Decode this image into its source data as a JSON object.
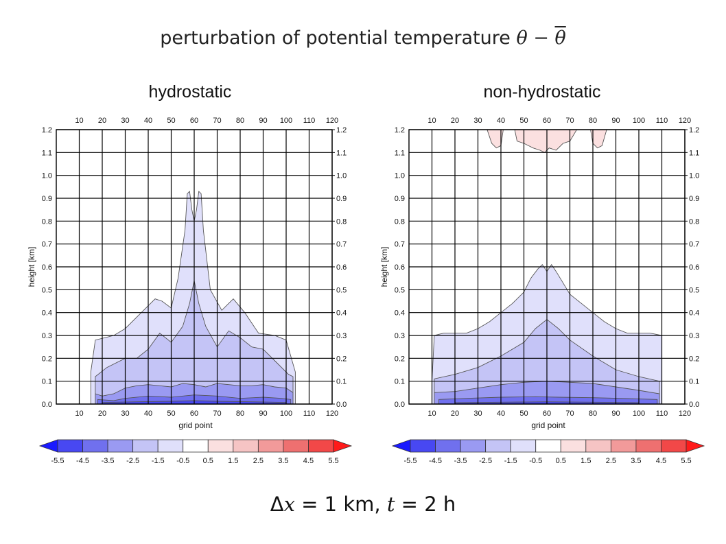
{
  "slide": {
    "title_text": "perturbation of potential temperature",
    "title_math": "θ − ",
    "title_math_bar": "θ",
    "footer_delta": "Δ",
    "footer_x": "x",
    "footer_rest": " = 1 km, ",
    "footer_t": "t",
    "footer_end": " = 2 h"
  },
  "colors": {
    "grid": "#000000",
    "outline": "#555555",
    "blue_levels": [
      "#1a1aff",
      "#4848f2",
      "#7070ee",
      "#9a9af2",
      "#c4c4f6",
      "#e0e0fb"
    ],
    "red_levels": [
      "#fbe0e0",
      "#f6c4c4",
      "#f29a9a",
      "#ee7070",
      "#f24848",
      "#ff1a1a"
    ]
  },
  "colorbar": {
    "labels": [
      "-5.5",
      "-4.5",
      "-3.5",
      "-2.5",
      "-1.5",
      "-0.5",
      "0.5",
      "1.5",
      "2.5",
      "3.5",
      "4.5",
      "5.5"
    ]
  },
  "chart_data": [
    {
      "type": "heatmap",
      "title": "hydrostatic",
      "xlabel": "grid point",
      "ylabel": "height [km]",
      "xlim": [
        0,
        120
      ],
      "ylim": [
        0,
        1.2
      ],
      "x_ticks": [
        "10",
        "20",
        "30",
        "40",
        "50",
        "60",
        "70",
        "80",
        "90",
        "100",
        "110",
        "120"
      ],
      "y_ticks": [
        "0.0",
        "0.1",
        "0.2",
        "0.3",
        "0.4",
        "0.5",
        "0.6",
        "0.7",
        "0.8",
        "0.9",
        "1.0",
        "1.1",
        "1.2"
      ],
      "grid": true,
      "levels": [
        {
          "level": "-0.5",
          "color_index": 5,
          "points": [
            [
              15,
              0
            ],
            [
              15,
              0.14
            ],
            [
              17,
              0.28
            ],
            [
              25,
              0.3
            ],
            [
              30,
              0.33
            ],
            [
              37,
              0.4
            ],
            [
              43,
              0.46
            ],
            [
              46,
              0.45
            ],
            [
              50,
              0.42
            ],
            [
              53,
              0.55
            ],
            [
              56,
              0.76
            ],
            [
              57,
              0.92
            ],
            [
              58,
              0.93
            ],
            [
              59,
              0.85
            ],
            [
              60,
              0.8
            ],
            [
              61,
              0.85
            ],
            [
              62,
              0.93
            ],
            [
              63,
              0.92
            ],
            [
              64,
              0.76
            ],
            [
              67,
              0.5
            ],
            [
              72,
              0.41
            ],
            [
              77,
              0.46
            ],
            [
              82,
              0.4
            ],
            [
              88,
              0.31
            ],
            [
              95,
              0.3
            ],
            [
              100,
              0.28
            ],
            [
              104,
              0.14
            ],
            [
              104,
              0
            ]
          ]
        },
        {
          "level": "-1.5",
          "color_index": 4,
          "points": [
            [
              17,
              0
            ],
            [
              17,
              0.12
            ],
            [
              22,
              0.16
            ],
            [
              30,
              0.2
            ],
            [
              35,
              0.2
            ],
            [
              40,
              0.24
            ],
            [
              45,
              0.31
            ],
            [
              50,
              0.27
            ],
            [
              55,
              0.34
            ],
            [
              58,
              0.44
            ],
            [
              60,
              0.54
            ],
            [
              62,
              0.44
            ],
            [
              65,
              0.34
            ],
            [
              70,
              0.25
            ],
            [
              75,
              0.32
            ],
            [
              80,
              0.29
            ],
            [
              85,
              0.25
            ],
            [
              90,
              0.24
            ],
            [
              96,
              0.18
            ],
            [
              101,
              0.13
            ],
            [
              103,
              0.12
            ],
            [
              103,
              0
            ]
          ]
        },
        {
          "level": "-2.5",
          "color_index": 3,
          "points": [
            [
              17,
              0
            ],
            [
              17,
              0.045
            ],
            [
              20,
              0.035
            ],
            [
              25,
              0.045
            ],
            [
              30,
              0.07
            ],
            [
              35,
              0.08
            ],
            [
              40,
              0.085
            ],
            [
              45,
              0.08
            ],
            [
              50,
              0.075
            ],
            [
              55,
              0.09
            ],
            [
              60,
              0.085
            ],
            [
              65,
              0.075
            ],
            [
              70,
              0.09
            ],
            [
              75,
              0.085
            ],
            [
              80,
              0.08
            ],
            [
              85,
              0.08
            ],
            [
              90,
              0.085
            ],
            [
              95,
              0.075
            ],
            [
              100,
              0.07
            ],
            [
              103,
              0.05
            ],
            [
              103,
              0
            ]
          ]
        },
        {
          "level": "-3.5",
          "color_index": 2,
          "points": [
            [
              18,
              0
            ],
            [
              18,
              0.02
            ],
            [
              25,
              0.015
            ],
            [
              30,
              0.025
            ],
            [
              40,
              0.035
            ],
            [
              50,
              0.03
            ],
            [
              60,
              0.04
            ],
            [
              70,
              0.035
            ],
            [
              80,
              0.025
            ],
            [
              90,
              0.03
            ],
            [
              98,
              0.025
            ],
            [
              102,
              0.02
            ],
            [
              102,
              0
            ]
          ]
        },
        {
          "level": "-4.5",
          "color_index": 1,
          "points": [
            [
              20,
              0
            ],
            [
              20,
              0.007
            ],
            [
              35,
              0.01
            ],
            [
              50,
              0.012
            ],
            [
              60,
              0.015
            ],
            [
              70,
              0.012
            ],
            [
              85,
              0.01
            ],
            [
              100,
              0.007
            ],
            [
              100,
              0
            ]
          ]
        }
      ]
    },
    {
      "type": "heatmap",
      "title": "non-hydrostatic",
      "xlabel": "grid point",
      "ylabel": "height [km]",
      "xlim": [
        0,
        120
      ],
      "ylim": [
        0,
        1.2
      ],
      "x_ticks": [
        "10",
        "20",
        "30",
        "40",
        "50",
        "60",
        "70",
        "80",
        "90",
        "100",
        "110",
        "120"
      ],
      "y_ticks": [
        "0.0",
        "0.1",
        "0.2",
        "0.3",
        "0.4",
        "0.5",
        "0.6",
        "0.7",
        "0.8",
        "0.9",
        "1.0",
        "1.1",
        "1.2"
      ],
      "grid": true,
      "levels": [
        {
          "level": "-0.5",
          "color_index": 5,
          "points": [
            [
              10,
              0
            ],
            [
              10,
              0.1
            ],
            [
              11,
              0.3
            ],
            [
              15,
              0.31
            ],
            [
              25,
              0.31
            ],
            [
              30,
              0.33
            ],
            [
              35,
              0.36
            ],
            [
              40,
              0.4
            ],
            [
              45,
              0.44
            ],
            [
              50,
              0.49
            ],
            [
              53,
              0.55
            ],
            [
              56,
              0.59
            ],
            [
              58,
              0.61
            ],
            [
              60,
              0.58
            ],
            [
              62,
              0.61
            ],
            [
              64,
              0.58
            ],
            [
              67,
              0.53
            ],
            [
              70,
              0.48
            ],
            [
              75,
              0.44
            ],
            [
              80,
              0.4
            ],
            [
              85,
              0.36
            ],
            [
              90,
              0.33
            ],
            [
              95,
              0.31
            ],
            [
              105,
              0.31
            ],
            [
              110,
              0.3
            ],
            [
              110,
              0
            ]
          ]
        },
        {
          "level": "-1.5",
          "color_index": 4,
          "points": [
            [
              11,
              0
            ],
            [
              11,
              0.11
            ],
            [
              20,
              0.13
            ],
            [
              30,
              0.16
            ],
            [
              40,
              0.21
            ],
            [
              50,
              0.27
            ],
            [
              55,
              0.33
            ],
            [
              60,
              0.37
            ],
            [
              65,
              0.33
            ],
            [
              70,
              0.28
            ],
            [
              80,
              0.21
            ],
            [
              90,
              0.15
            ],
            [
              100,
              0.12
            ],
            [
              109,
              0.1
            ],
            [
              109,
              0
            ]
          ]
        },
        {
          "level": "-2.5",
          "color_index": 3,
          "points": [
            [
              11,
              0
            ],
            [
              11,
              0.05
            ],
            [
              20,
              0.055
            ],
            [
              30,
              0.07
            ],
            [
              40,
              0.085
            ],
            [
              50,
              0.095
            ],
            [
              60,
              0.1
            ],
            [
              70,
              0.095
            ],
            [
              80,
              0.09
            ],
            [
              90,
              0.075
            ],
            [
              100,
              0.06
            ],
            [
              109,
              0.045
            ],
            [
              109,
              0
            ]
          ]
        },
        {
          "level": "-3.5",
          "color_index": 2,
          "points": [
            [
              13,
              0
            ],
            [
              13,
              0.02
            ],
            [
              25,
              0.025
            ],
            [
              40,
              0.03
            ],
            [
              55,
              0.032
            ],
            [
              65,
              0.03
            ],
            [
              80,
              0.028
            ],
            [
              95,
              0.024
            ],
            [
              108,
              0.02
            ],
            [
              108,
              0
            ]
          ]
        },
        {
          "level": "-4.5",
          "color_index": 1,
          "points": [
            [
              20,
              0
            ],
            [
              20,
              0.006
            ],
            [
              40,
              0.008
            ],
            [
              60,
              0.01
            ],
            [
              80,
              0.008
            ],
            [
              100,
              0.006
            ],
            [
              100,
              0
            ]
          ]
        },
        {
          "level": "0.5",
          "color_index": 6,
          "points": [
            [
              34,
              1.2
            ],
            [
              36,
              1.14
            ],
            [
              38,
              1.12
            ],
            [
              40,
              1.13
            ],
            [
              41,
              1.2
            ]
          ]
        },
        {
          "level": "0.5",
          "color_index": 6,
          "points": [
            [
              46,
              1.2
            ],
            [
              47,
              1.15
            ],
            [
              50,
              1.14
            ],
            [
              54,
              1.12
            ],
            [
              57,
              1.11
            ],
            [
              59,
              1.1
            ],
            [
              61,
              1.12
            ],
            [
              64,
              1.11
            ],
            [
              67,
              1.14
            ],
            [
              70,
              1.15
            ],
            [
              73,
              1.2
            ]
          ]
        },
        {
          "level": "0.5",
          "color_index": 6,
          "points": [
            [
              79,
              1.2
            ],
            [
              80,
              1.14
            ],
            [
              82,
              1.12
            ],
            [
              84,
              1.13
            ],
            [
              86,
              1.2
            ]
          ]
        }
      ]
    }
  ]
}
